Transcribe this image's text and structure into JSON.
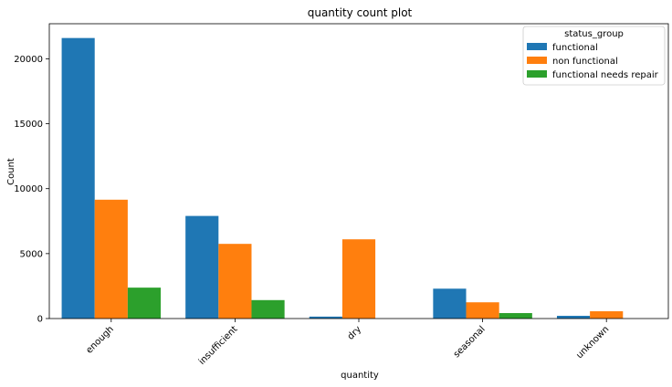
{
  "chart_data": {
    "type": "bar",
    "title": "quantity count plot",
    "xlabel": "quantity",
    "ylabel": "Count",
    "categories": [
      "enough",
      "insufficient",
      "dry",
      "seasonal",
      "unknown"
    ],
    "ylim": [
      0,
      22700
    ],
    "yticks": [
      0,
      5000,
      10000,
      15000,
      20000
    ],
    "grid": false,
    "legend": {
      "title": "status_group",
      "placement": "top-right"
    },
    "series": [
      {
        "name": "functional",
        "color": "#1f77b4",
        "values": [
          21600,
          7900,
          150,
          2300,
          210
        ]
      },
      {
        "name": "non functional",
        "color": "#ff7f0e",
        "values": [
          9150,
          5750,
          6100,
          1250,
          560
        ]
      },
      {
        "name": "functional needs repair",
        "color": "#2ca02c",
        "values": [
          2380,
          1420,
          0,
          420,
          0
        ]
      }
    ]
  }
}
